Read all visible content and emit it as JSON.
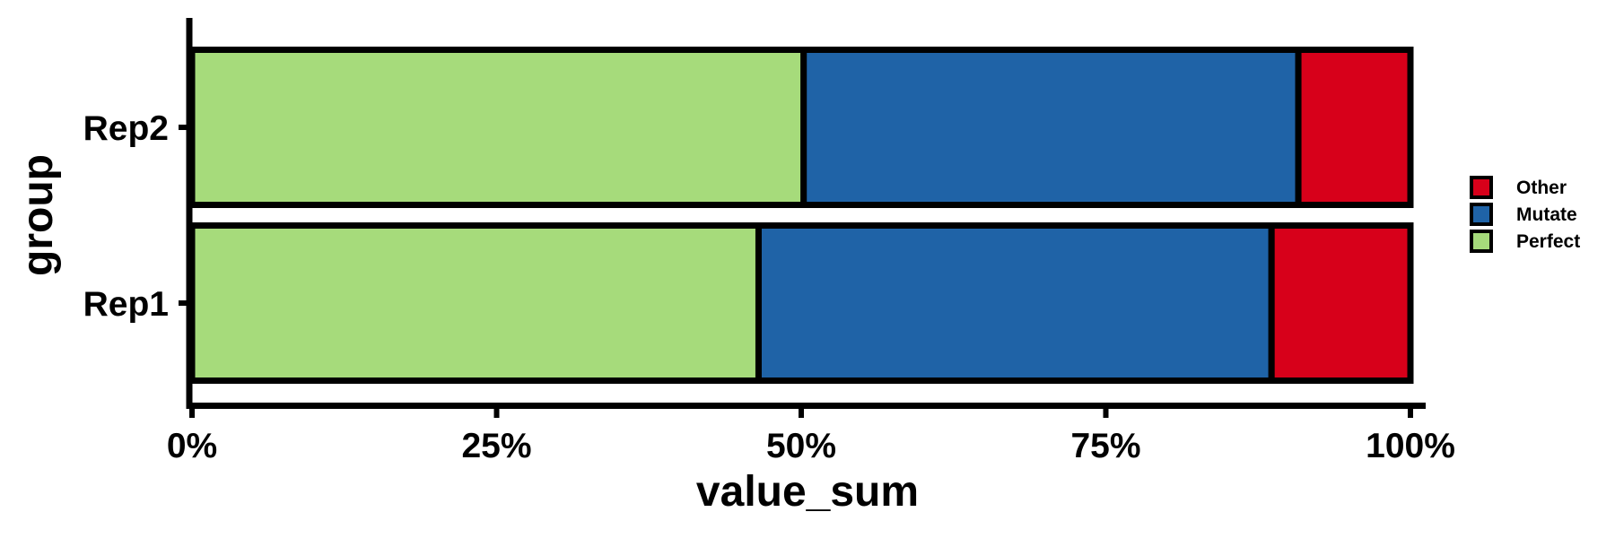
{
  "chart_data": {
    "type": "bar",
    "orientation": "horizontal",
    "stacked": "percent",
    "xlabel": "value_sum",
    "ylabel": "group",
    "xlim": [
      0,
      100
    ],
    "x_ticks": [
      "0%",
      "25%",
      "50%",
      "75%",
      "100%"
    ],
    "categories": [
      "Rep1",
      "Rep2"
    ],
    "series": [
      {
        "name": "Perfect",
        "color": "#a6db7b",
        "values": [
          46.5,
          50.2
        ]
      },
      {
        "name": "Mutate",
        "color": "#1f63a7",
        "values": [
          42.1,
          40.6
        ]
      },
      {
        "name": "Other",
        "color": "#d7001a",
        "values": [
          11.4,
          9.2
        ]
      }
    ],
    "legend": {
      "position": "right",
      "entries": [
        "Other",
        "Mutate",
        "Perfect"
      ]
    },
    "grid": false
  }
}
